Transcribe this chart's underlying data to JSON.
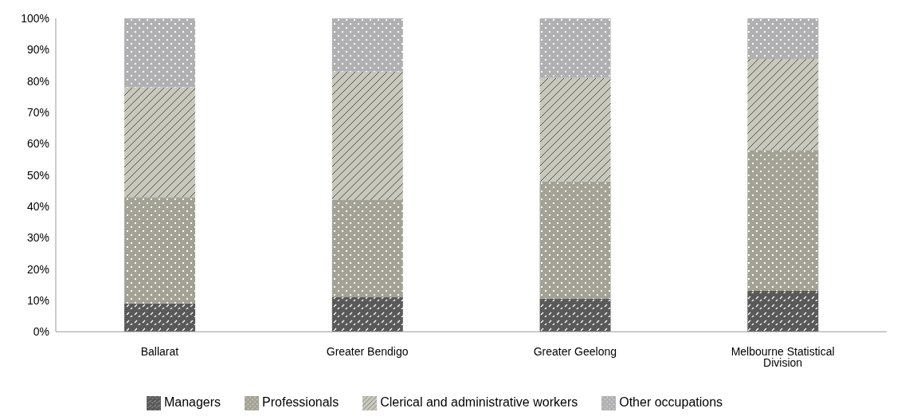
{
  "chart_data": {
    "type": "bar",
    "stacked": true,
    "categories": [
      "Ballarat",
      "Greater Bendigo",
      "Greater Geelong",
      "Melbourne Statistical Division"
    ],
    "series": [
      {
        "name": "Managers",
        "color": "#595959",
        "values": [
          9,
          11,
          10.5,
          13
        ]
      },
      {
        "name": "Professionals",
        "color": "#a3a295",
        "values": [
          34,
          31,
          37.5,
          45
        ]
      },
      {
        "name": "Clerical and administrative workers",
        "color": "#c9c8bc",
        "values": [
          35,
          41,
          33,
          29
        ]
      },
      {
        "name": "Other occupations",
        "color": "#b0afb2",
        "values": [
          22,
          17,
          19,
          13
        ]
      }
    ],
    "ylim": [
      0,
      100
    ],
    "yticks": [
      {
        "value": 0,
        "label": "0%"
      },
      {
        "value": 10,
        "label": "10%"
      },
      {
        "value": 20,
        "label": "20%"
      },
      {
        "value": 30,
        "label": "30%"
      },
      {
        "value": 40,
        "label": "40%"
      },
      {
        "value": 50,
        "label": "50%"
      },
      {
        "value": 60,
        "label": "60%"
      },
      {
        "value": 70,
        "label": "70%"
      },
      {
        "value": 80,
        "label": "80%"
      },
      {
        "value": 90,
        "label": "90%"
      },
      {
        "value": 100,
        "label": "100%"
      }
    ],
    "legend": "bottom"
  }
}
